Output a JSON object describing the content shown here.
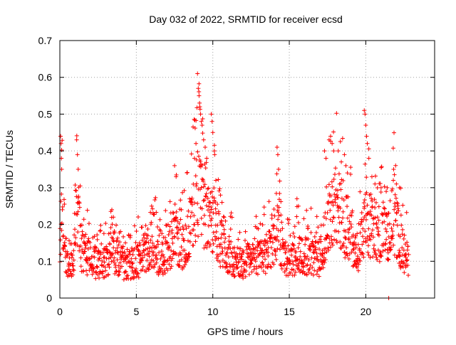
{
  "chart_data": {
    "type": "scatter",
    "title": "Day 032 of 2022, SRMTID for receiver ecsd",
    "xlabel": "GPS time / hours",
    "ylabel": "SRMTID / TECUs",
    "xlim": [
      0,
      24.5
    ],
    "ylim": [
      0,
      0.7
    ],
    "xticks": [
      0,
      5,
      10,
      15,
      20
    ],
    "xtick_labels": [
      "0",
      "5",
      "10",
      "15",
      "20"
    ],
    "yticks": [
      0,
      0.1,
      0.2,
      0.3,
      0.4,
      0.5,
      0.6,
      0.7
    ],
    "ytick_labels": [
      "0",
      "0.1",
      "0.2",
      "0.3",
      "0.4",
      "0.5",
      "0.6",
      "0.7"
    ],
    "grid": true,
    "marker": "+",
    "marker_color": "#ff0000",
    "point_count_approx": 1600,
    "series": [
      {
        "name": "SRMTID",
        "profile": [
          {
            "x": 0.0,
            "y": 0.12
          },
          {
            "x": 0.1,
            "y": 0.3
          },
          {
            "x": 0.2,
            "y": 0.15
          },
          {
            "x": 0.5,
            "y": 0.1
          },
          {
            "x": 0.9,
            "y": 0.09
          },
          {
            "x": 1.1,
            "y": 0.28
          },
          {
            "x": 1.4,
            "y": 0.12
          },
          {
            "x": 2.0,
            "y": 0.11
          },
          {
            "x": 2.5,
            "y": 0.09
          },
          {
            "x": 3.0,
            "y": 0.1
          },
          {
            "x": 3.5,
            "y": 0.13
          },
          {
            "x": 4.0,
            "y": 0.1
          },
          {
            "x": 4.5,
            "y": 0.09
          },
          {
            "x": 5.0,
            "y": 0.1
          },
          {
            "x": 5.5,
            "y": 0.12
          },
          {
            "x": 6.0,
            "y": 0.15
          },
          {
            "x": 6.5,
            "y": 0.11
          },
          {
            "x": 7.0,
            "y": 0.12
          },
          {
            "x": 7.5,
            "y": 0.18
          },
          {
            "x": 8.0,
            "y": 0.14
          },
          {
            "x": 8.5,
            "y": 0.18
          },
          {
            "x": 9.0,
            "y": 0.3
          },
          {
            "x": 9.3,
            "y": 0.25
          },
          {
            "x": 9.6,
            "y": 0.2
          },
          {
            "x": 10.0,
            "y": 0.22
          },
          {
            "x": 10.5,
            "y": 0.15
          },
          {
            "x": 11.0,
            "y": 0.12
          },
          {
            "x": 11.5,
            "y": 0.1
          },
          {
            "x": 12.0,
            "y": 0.09
          },
          {
            "x": 12.5,
            "y": 0.12
          },
          {
            "x": 13.0,
            "y": 0.11
          },
          {
            "x": 13.5,
            "y": 0.12
          },
          {
            "x": 14.0,
            "y": 0.15
          },
          {
            "x": 14.3,
            "y": 0.2
          },
          {
            "x": 14.6,
            "y": 0.12
          },
          {
            "x": 15.0,
            "y": 0.1
          },
          {
            "x": 15.5,
            "y": 0.12
          },
          {
            "x": 16.0,
            "y": 0.11
          },
          {
            "x": 16.5,
            "y": 0.12
          },
          {
            "x": 17.0,
            "y": 0.1
          },
          {
            "x": 17.5,
            "y": 0.18
          },
          {
            "x": 18.0,
            "y": 0.25
          },
          {
            "x": 18.5,
            "y": 0.22
          },
          {
            "x": 19.0,
            "y": 0.18
          },
          {
            "x": 19.5,
            "y": 0.12
          },
          {
            "x": 19.9,
            "y": 0.2
          },
          {
            "x": 20.3,
            "y": 0.2
          },
          {
            "x": 20.8,
            "y": 0.18
          },
          {
            "x": 21.3,
            "y": 0.17
          },
          {
            "x": 21.8,
            "y": 0.22
          },
          {
            "x": 22.3,
            "y": 0.14
          },
          {
            "x": 22.8,
            "y": 0.1
          }
        ],
        "outliers": [
          {
            "x": 0.05,
            "y": 0.44
          },
          {
            "x": 0.08,
            "y": 0.42
          },
          {
            "x": 0.1,
            "y": 0.38
          },
          {
            "x": 0.12,
            "y": 0.35
          },
          {
            "x": 1.1,
            "y": 0.43
          },
          {
            "x": 1.15,
            "y": 0.39
          },
          {
            "x": 1.2,
            "y": 0.35
          },
          {
            "x": 3.4,
            "y": 0.24
          },
          {
            "x": 3.5,
            "y": 0.22
          },
          {
            "x": 6.0,
            "y": 0.25
          },
          {
            "x": 6.1,
            "y": 0.23
          },
          {
            "x": 7.5,
            "y": 0.36
          },
          {
            "x": 7.6,
            "y": 0.33
          },
          {
            "x": 8.8,
            "y": 0.38
          },
          {
            "x": 8.9,
            "y": 0.42
          },
          {
            "x": 9.0,
            "y": 0.61
          },
          {
            "x": 9.05,
            "y": 0.57
          },
          {
            "x": 9.1,
            "y": 0.55
          },
          {
            "x": 9.15,
            "y": 0.52
          },
          {
            "x": 9.2,
            "y": 0.5
          },
          {
            "x": 9.25,
            "y": 0.48
          },
          {
            "x": 9.3,
            "y": 0.47
          },
          {
            "x": 9.4,
            "y": 0.43
          },
          {
            "x": 9.5,
            "y": 0.41
          },
          {
            "x": 9.6,
            "y": 0.38
          },
          {
            "x": 9.9,
            "y": 0.5
          },
          {
            "x": 9.95,
            "y": 0.48
          },
          {
            "x": 10.0,
            "y": 0.45
          },
          {
            "x": 10.1,
            "y": 0.4
          },
          {
            "x": 10.2,
            "y": 0.32
          },
          {
            "x": 10.5,
            "y": 0.28
          },
          {
            "x": 10.6,
            "y": 0.26
          },
          {
            "x": 14.2,
            "y": 0.41
          },
          {
            "x": 14.25,
            "y": 0.39
          },
          {
            "x": 14.3,
            "y": 0.35
          },
          {
            "x": 15.5,
            "y": 0.27
          },
          {
            "x": 15.6,
            "y": 0.25
          },
          {
            "x": 17.3,
            "y": 0.4
          },
          {
            "x": 17.4,
            "y": 0.38
          },
          {
            "x": 17.6,
            "y": 0.43
          },
          {
            "x": 17.7,
            "y": 0.44
          },
          {
            "x": 17.8,
            "y": 0.42
          },
          {
            "x": 17.9,
            "y": 0.4
          },
          {
            "x": 18.2,
            "y": 0.4
          },
          {
            "x": 18.4,
            "y": 0.37
          },
          {
            "x": 18.7,
            "y": 0.36
          },
          {
            "x": 18.8,
            "y": 0.34
          },
          {
            "x": 19.9,
            "y": 0.51
          },
          {
            "x": 19.95,
            "y": 0.5
          },
          {
            "x": 20.0,
            "y": 0.47
          },
          {
            "x": 20.05,
            "y": 0.44
          },
          {
            "x": 20.1,
            "y": 0.42
          },
          {
            "x": 20.2,
            "y": 0.38
          },
          {
            "x": 20.4,
            "y": 0.33
          },
          {
            "x": 20.6,
            "y": 0.31
          },
          {
            "x": 21.0,
            "y": 0.3
          },
          {
            "x": 21.4,
            "y": 0.3
          },
          {
            "x": 21.8,
            "y": 0.32
          },
          {
            "x": 22.0,
            "y": 0.31
          },
          {
            "x": 22.2,
            "y": 0.3
          },
          {
            "x": 21.5,
            "y": 0.0
          }
        ]
      }
    ]
  }
}
